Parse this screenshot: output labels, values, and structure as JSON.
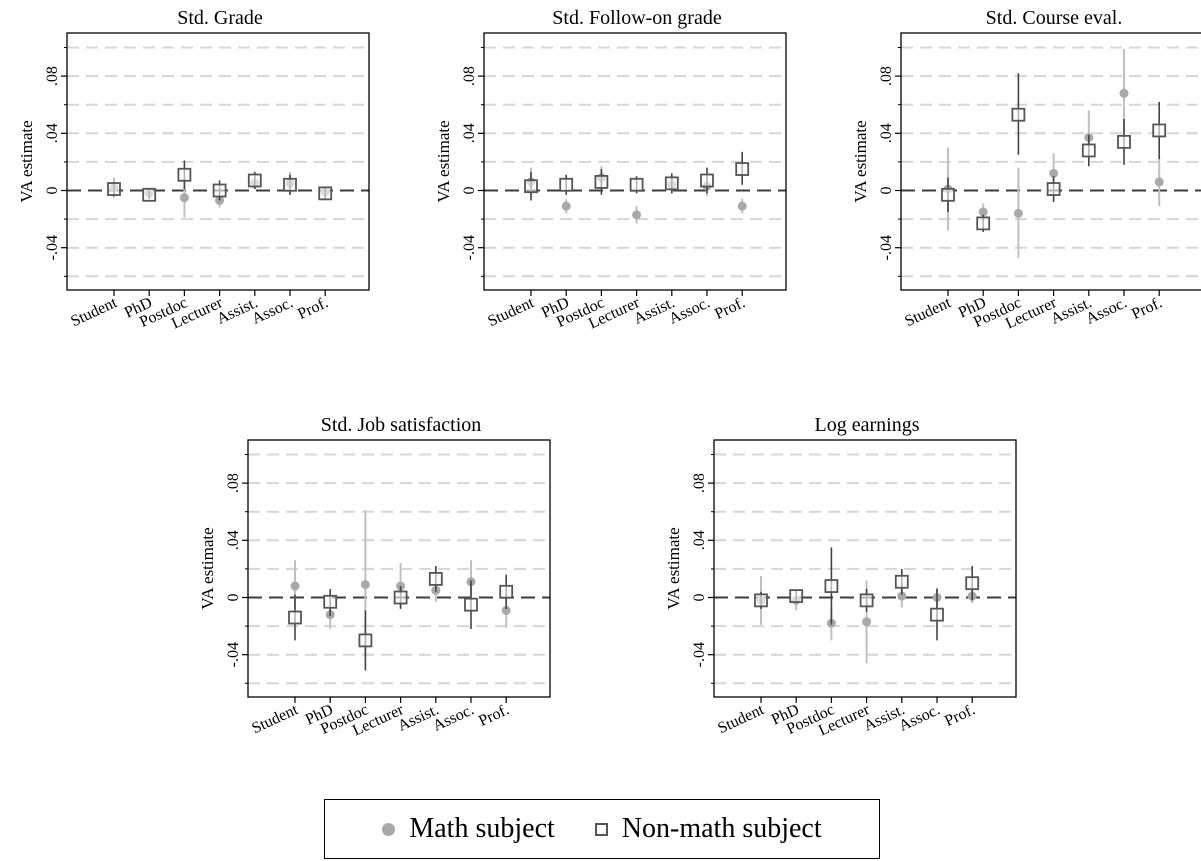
{
  "chart_data": {
    "type": "scatter",
    "categories": [
      "Student",
      "PhD",
      "Postdoc",
      "Lecturer",
      "Assist.",
      "Assoc.",
      "Prof."
    ],
    "ylabel": "VA estimate",
    "yticks": [
      "-.04",
      "0",
      ".04",
      ".08"
    ],
    "ylim": [
      -0.07,
      0.11
    ],
    "grid": true,
    "legend_position": "bottom",
    "series_names": {
      "math": "Math subject",
      "nonmath": "Non-math subject"
    },
    "colors": {
      "math": "#a9a9a9",
      "nonmath": "#555555",
      "ci_math": "#c0c0c0",
      "ci_nonmath": "#444444"
    },
    "panels": [
      {
        "title": "Std. Grade",
        "math": {
          "y": [
            0.002,
            -0.002,
            -0.005,
            -0.007,
            0.005,
            0.005,
            -0.001
          ],
          "lo": [
            -0.005,
            -0.005,
            -0.019,
            -0.012,
            0.001,
            -0.003,
            -0.005
          ],
          "hi": [
            0.009,
            0.001,
            0.009,
            -0.002,
            0.009,
            0.013,
            0.003
          ]
        },
        "nonmath": {
          "y": [
            0.001,
            -0.003,
            0.011,
            0.0,
            0.007,
            0.004,
            -0.002
          ],
          "lo": [
            -0.004,
            -0.006,
            0.001,
            -0.007,
            0.001,
            -0.003,
            -0.006
          ],
          "hi": [
            0.006,
            0.0,
            0.021,
            0.007,
            0.013,
            0.011,
            0.002
          ]
        }
      },
      {
        "title": "Std. Follow-on grade",
        "math": {
          "y": [
            0.006,
            -0.011,
            0.009,
            -0.017,
            0.004,
            0.003,
            -0.011
          ],
          "lo": [
            -0.003,
            -0.016,
            0.0,
            -0.023,
            -0.002,
            -0.004,
            -0.016
          ],
          "hi": [
            0.016,
            -0.006,
            0.017,
            -0.011,
            0.01,
            0.01,
            -0.006
          ]
        },
        "nonmath": {
          "y": [
            0.003,
            0.004,
            0.006,
            0.004,
            0.005,
            0.007,
            0.015
          ],
          "lo": [
            -0.007,
            -0.003,
            -0.003,
            -0.002,
            -0.002,
            -0.002,
            0.004
          ],
          "hi": [
            0.013,
            0.011,
            0.015,
            0.01,
            0.012,
            0.016,
            0.027
          ]
        }
      },
      {
        "title": "Std. Course eval.",
        "math": {
          "y": [
            0.001,
            -0.015,
            -0.016,
            0.012,
            0.037,
            0.068,
            0.006
          ],
          "lo": [
            -0.028,
            -0.021,
            -0.047,
            0.003,
            0.026,
            0.036,
            -0.011
          ],
          "hi": [
            0.03,
            -0.009,
            0.016,
            0.026,
            0.056,
            0.099,
            0.023
          ]
        },
        "nonmath": {
          "y": [
            -0.003,
            -0.023,
            0.053,
            0.001,
            0.028,
            0.034,
            0.042
          ],
          "lo": [
            -0.015,
            -0.029,
            0.025,
            -0.008,
            0.017,
            0.018,
            0.022
          ],
          "hi": [
            0.009,
            -0.017,
            0.082,
            0.01,
            0.039,
            0.05,
            0.062
          ]
        }
      },
      {
        "title": "Std. Job satisfaction",
        "math": {
          "y": [
            0.008,
            -0.012,
            0.009,
            0.008,
            0.005,
            0.011,
            -0.009
          ],
          "lo": [
            -0.008,
            -0.022,
            -0.042,
            -0.007,
            -0.003,
            -0.004,
            -0.021
          ],
          "hi": [
            0.026,
            -0.003,
            0.061,
            0.024,
            0.013,
            0.026,
            0.003
          ]
        },
        "nonmath": {
          "y": [
            -0.014,
            -0.003,
            -0.03,
            0.0,
            0.013,
            -0.005,
            0.004
          ],
          "lo": [
            -0.03,
            -0.013,
            -0.051,
            -0.008,
            0.004,
            -0.022,
            -0.008
          ],
          "hi": [
            0.002,
            0.006,
            -0.009,
            0.008,
            0.022,
            0.012,
            0.016
          ]
        }
      },
      {
        "title": "Log earnings",
        "math": {
          "y": [
            -0.002,
            -0.002,
            -0.018,
            -0.017,
            0.001,
            0.0,
            0.001
          ],
          "lo": [
            -0.019,
            -0.009,
            -0.03,
            -0.046,
            -0.007,
            -0.007,
            -0.004
          ],
          "hi": [
            0.015,
            0.005,
            -0.006,
            0.012,
            0.009,
            0.007,
            0.006
          ]
        },
        "nonmath": {
          "y": [
            -0.002,
            0.001,
            0.008,
            -0.002,
            0.011,
            -0.012,
            0.01
          ],
          "lo": [
            -0.008,
            -0.003,
            -0.019,
            -0.01,
            0.002,
            -0.03,
            -0.002
          ],
          "hi": [
            0.004,
            0.005,
            0.035,
            0.006,
            0.02,
            0.006,
            0.022
          ]
        }
      }
    ]
  }
}
